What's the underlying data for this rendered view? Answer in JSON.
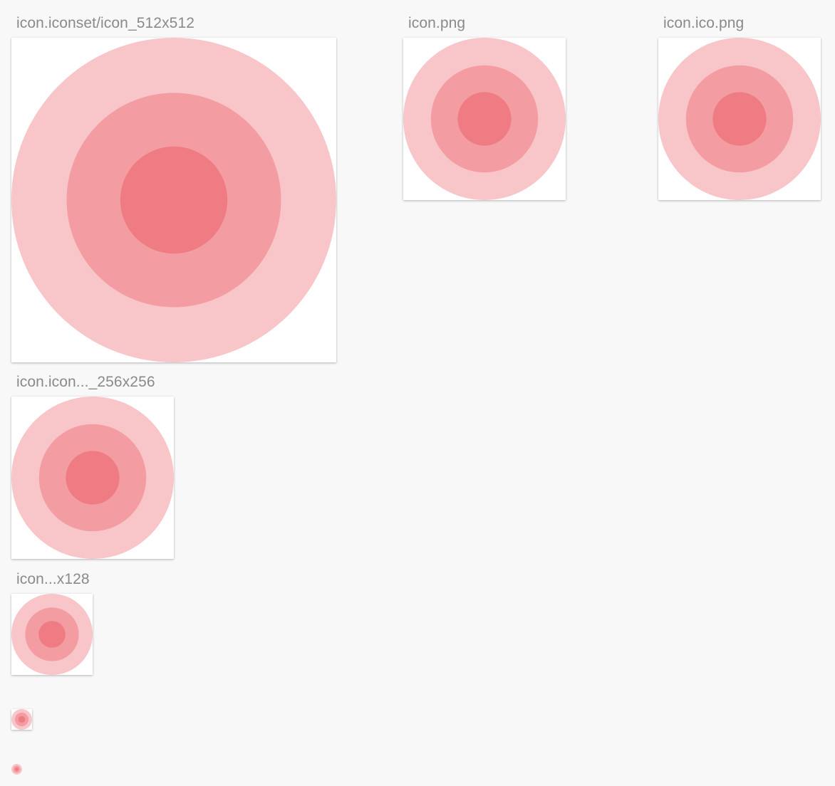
{
  "gallery": {
    "items": [
      {
        "label": "icon.iconset/icon_512x512"
      },
      {
        "label": "icon.png"
      },
      {
        "label": "icon.ico.png"
      },
      {
        "label": "icon.icon..._256x256"
      },
      {
        "label": "icon...x128"
      },
      {
        "label": ""
      },
      {
        "label": ""
      }
    ]
  },
  "icon": {
    "name": "concentric-circles-icon",
    "colors": {
      "outer": "#f8c5c9",
      "middle": "#f39ca2",
      "inner": "#ef7c83"
    }
  }
}
